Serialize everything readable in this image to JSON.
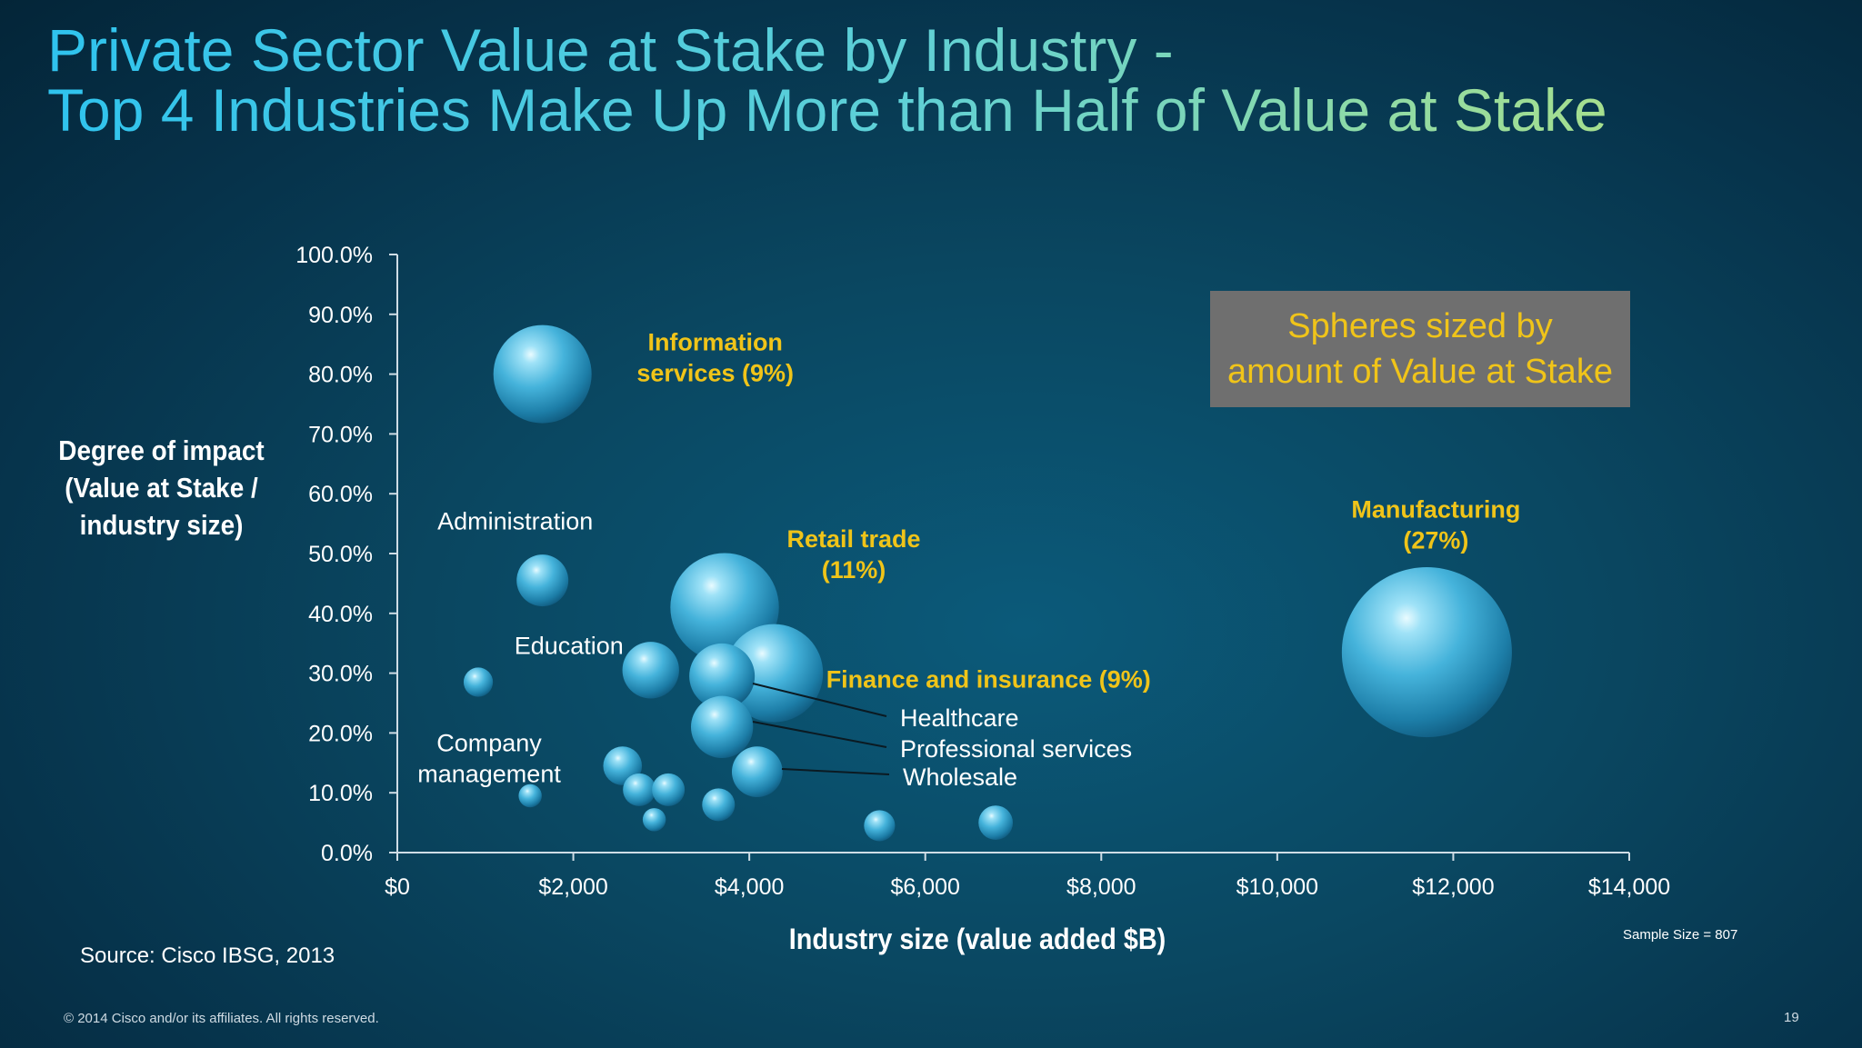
{
  "title": {
    "line1": "Private Sector Value at Stake by Industry -",
    "line2": "Top 4 Industries Make Up More than Half of Value at Stake"
  },
  "note": {
    "line1": "Spheres sized by",
    "line2": "amount of Value at Stake"
  },
  "source": "Source: Cisco IBSG, 2013",
  "sample_size": "Sample Size = 807",
  "copyright": "© 2014 Cisco and/or its affiliates. All rights reserved.",
  "page_number": "19",
  "colors": {
    "bubble": "#39a9d0",
    "highlight_label": "#f0c419",
    "label": "#ffffff",
    "title_start": "#2fc3ee",
    "title_end": "#a6df8e",
    "note_box": "#6f6f6f"
  },
  "chart_data": {
    "type": "scatter",
    "xlabel": "Industry size (value added $B)",
    "ylabel_lines": [
      "Degree of impact",
      "(Value at Stake /",
      "industry size)"
    ],
    "xlim": [
      0,
      14000
    ],
    "ylim": [
      0,
      100
    ],
    "x_ticks": [
      "$0",
      "$2,000",
      "$4,000",
      "$6,000",
      "$8,000",
      "$10,000",
      "$12,000",
      "$14,000"
    ],
    "y_ticks": [
      "0.0%",
      "10.0%",
      "20.0%",
      "30.0%",
      "40.0%",
      "50.0%",
      "60.0%",
      "70.0%",
      "80.0%",
      "90.0%",
      "100.0%"
    ],
    "size_note": "Spheres sized by amount of Value at Stake",
    "points": [
      {
        "label": "Information services (9%)",
        "x": 1650,
        "y": 80,
        "size": 9,
        "highlight": true
      },
      {
        "label": "Administration",
        "x": 1650,
        "y": 45.5,
        "size": 2.5,
        "highlight": false
      },
      {
        "label": "Company management",
        "x": 920,
        "y": 28.5,
        "size": 0.8,
        "highlight": false
      },
      {
        "label": "Education",
        "x": 2880,
        "y": 30.5,
        "size": 3.0,
        "highlight": false
      },
      {
        "label": "Retail trade (11%)",
        "x": 3720,
        "y": 41,
        "size": 11,
        "highlight": true
      },
      {
        "label": "Finance and insurance (9%)",
        "x": 4280,
        "y": 30,
        "size": 9,
        "highlight": true
      },
      {
        "label": "Healthcare",
        "x": 3690,
        "y": 29.5,
        "size": 4.0,
        "highlight": false
      },
      {
        "label": "Professional services",
        "x": 3690,
        "y": 21,
        "size": 3.6,
        "highlight": false
      },
      {
        "label": "Wholesale",
        "x": 4090,
        "y": 13.5,
        "size": 2.4,
        "highlight": false
      },
      {
        "label": "Manufacturing (27%)",
        "x": 11700,
        "y": 33.5,
        "size": 27,
        "highlight": true
      },
      {
        "label": "",
        "x": 1510,
        "y": 9.5,
        "size": 0.5,
        "highlight": false
      },
      {
        "label": "",
        "x": 2560,
        "y": 14.5,
        "size": 1.4,
        "highlight": false
      },
      {
        "label": "",
        "x": 2750,
        "y": 10.5,
        "size": 1.0,
        "highlight": false
      },
      {
        "label": "",
        "x": 3080,
        "y": 10.5,
        "size": 1.0,
        "highlight": false
      },
      {
        "label": "",
        "x": 2920,
        "y": 5.5,
        "size": 0.5,
        "highlight": false
      },
      {
        "label": "",
        "x": 3650,
        "y": 8,
        "size": 1.0,
        "highlight": false
      },
      {
        "label": "",
        "x": 5480,
        "y": 4.5,
        "size": 0.9,
        "highlight": false
      },
      {
        "label": "",
        "x": 6800,
        "y": 5,
        "size": 1.1,
        "highlight": false
      }
    ]
  }
}
